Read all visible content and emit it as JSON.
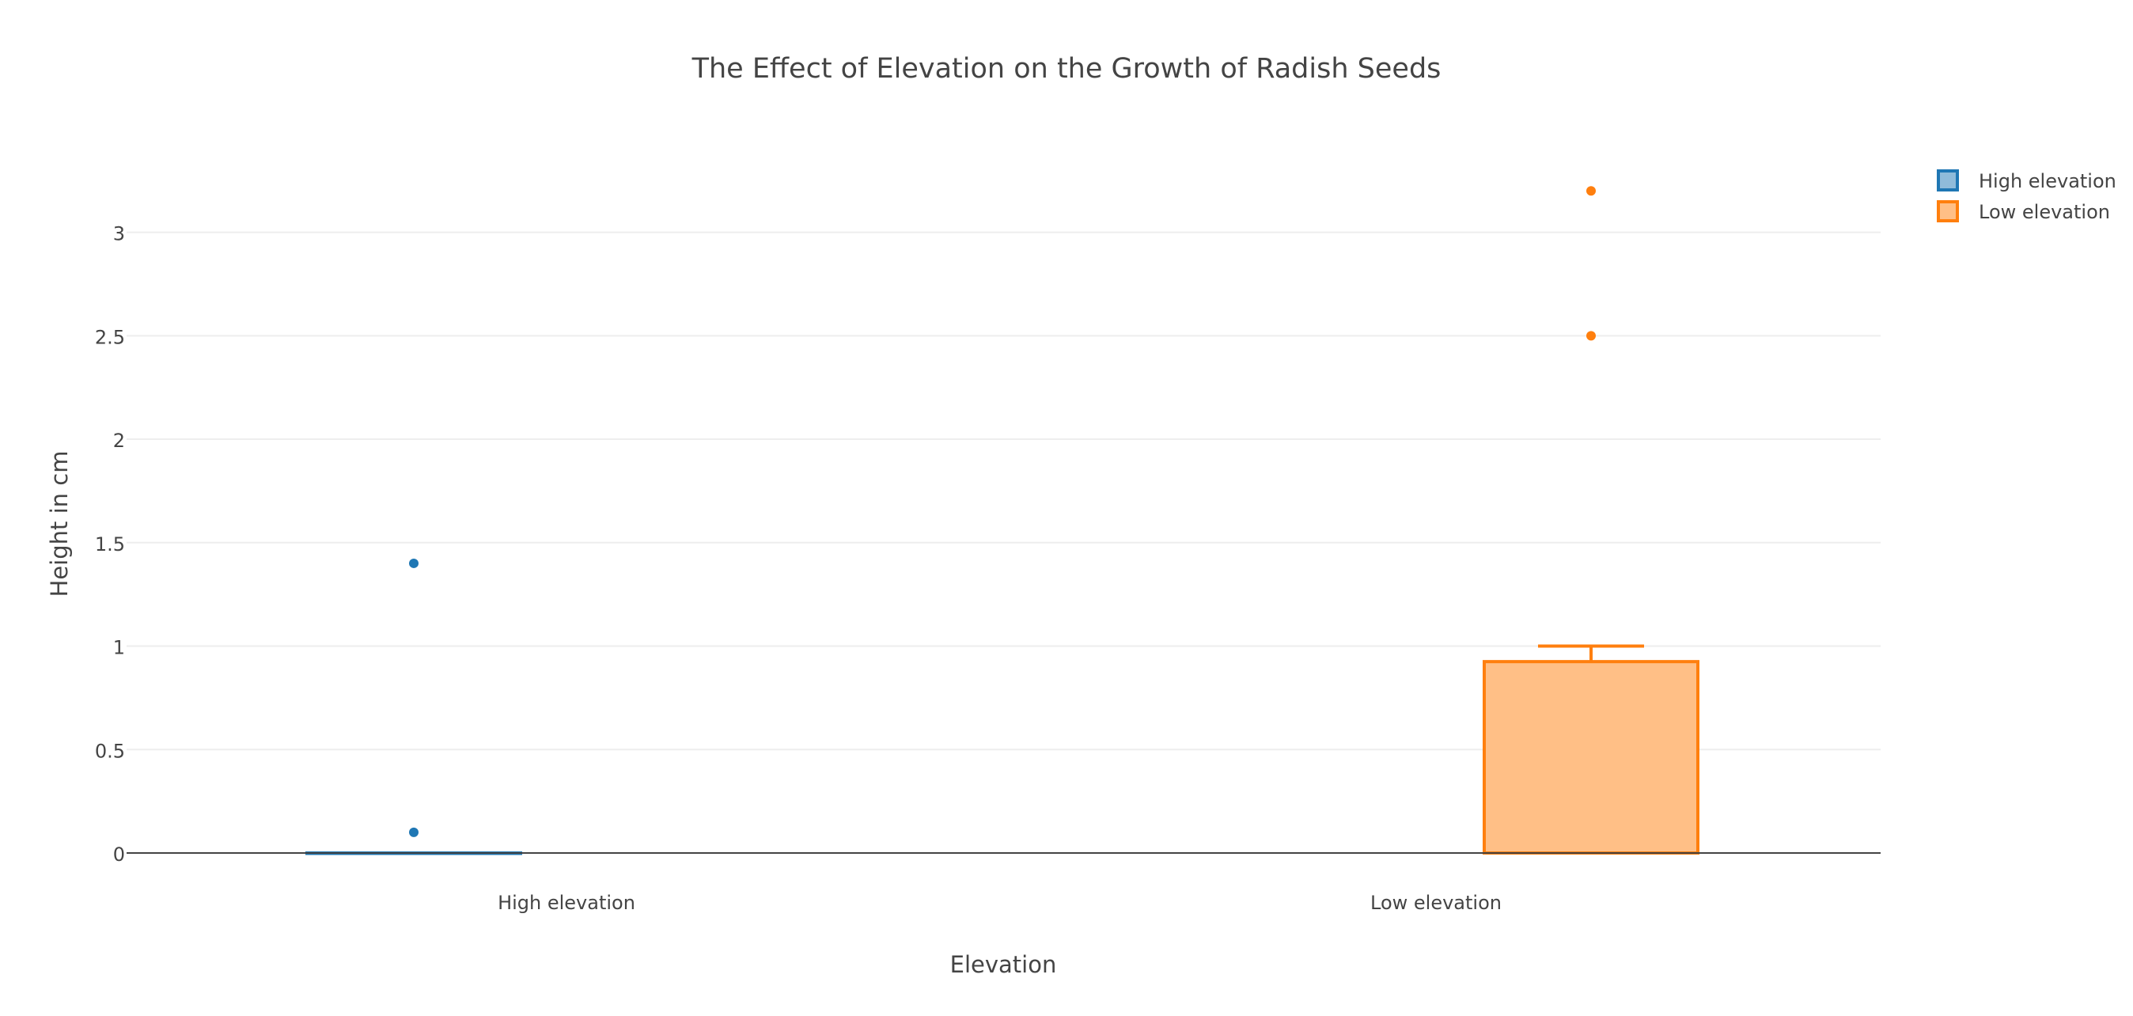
{
  "chart_data": {
    "type": "box",
    "title": "The Effect of Elevation on the Growth of Radish Seeds",
    "xlabel": "Elevation",
    "ylabel": "Height in cm",
    "categories": [
      "High elevation",
      "Low elevation"
    ],
    "ylim": [
      0,
      3.4
    ],
    "yticks": [
      0,
      0.5,
      1,
      1.5,
      2,
      2.5,
      3
    ],
    "ytick_labels": [
      "0",
      "0.5",
      "1",
      "1.5",
      "2",
      "2.5",
      "3"
    ],
    "grid": true,
    "legend_position": "top-right",
    "series": [
      {
        "name": "High elevation",
        "color": "#1f77b4",
        "fill": "#8fbbda",
        "q1": 0,
        "median": 0,
        "q3": 0,
        "lower_fence": 0,
        "upper_fence": 0,
        "outliers": [
          0.1,
          1.4
        ]
      },
      {
        "name": "Low elevation",
        "color": "#ff7f0e",
        "fill": "#ffbf86",
        "q1": 0,
        "median": 0,
        "q3": 0.925,
        "lower_fence": 0,
        "upper_fence": 1.0,
        "outliers": [
          2.5,
          3.2
        ]
      }
    ]
  }
}
